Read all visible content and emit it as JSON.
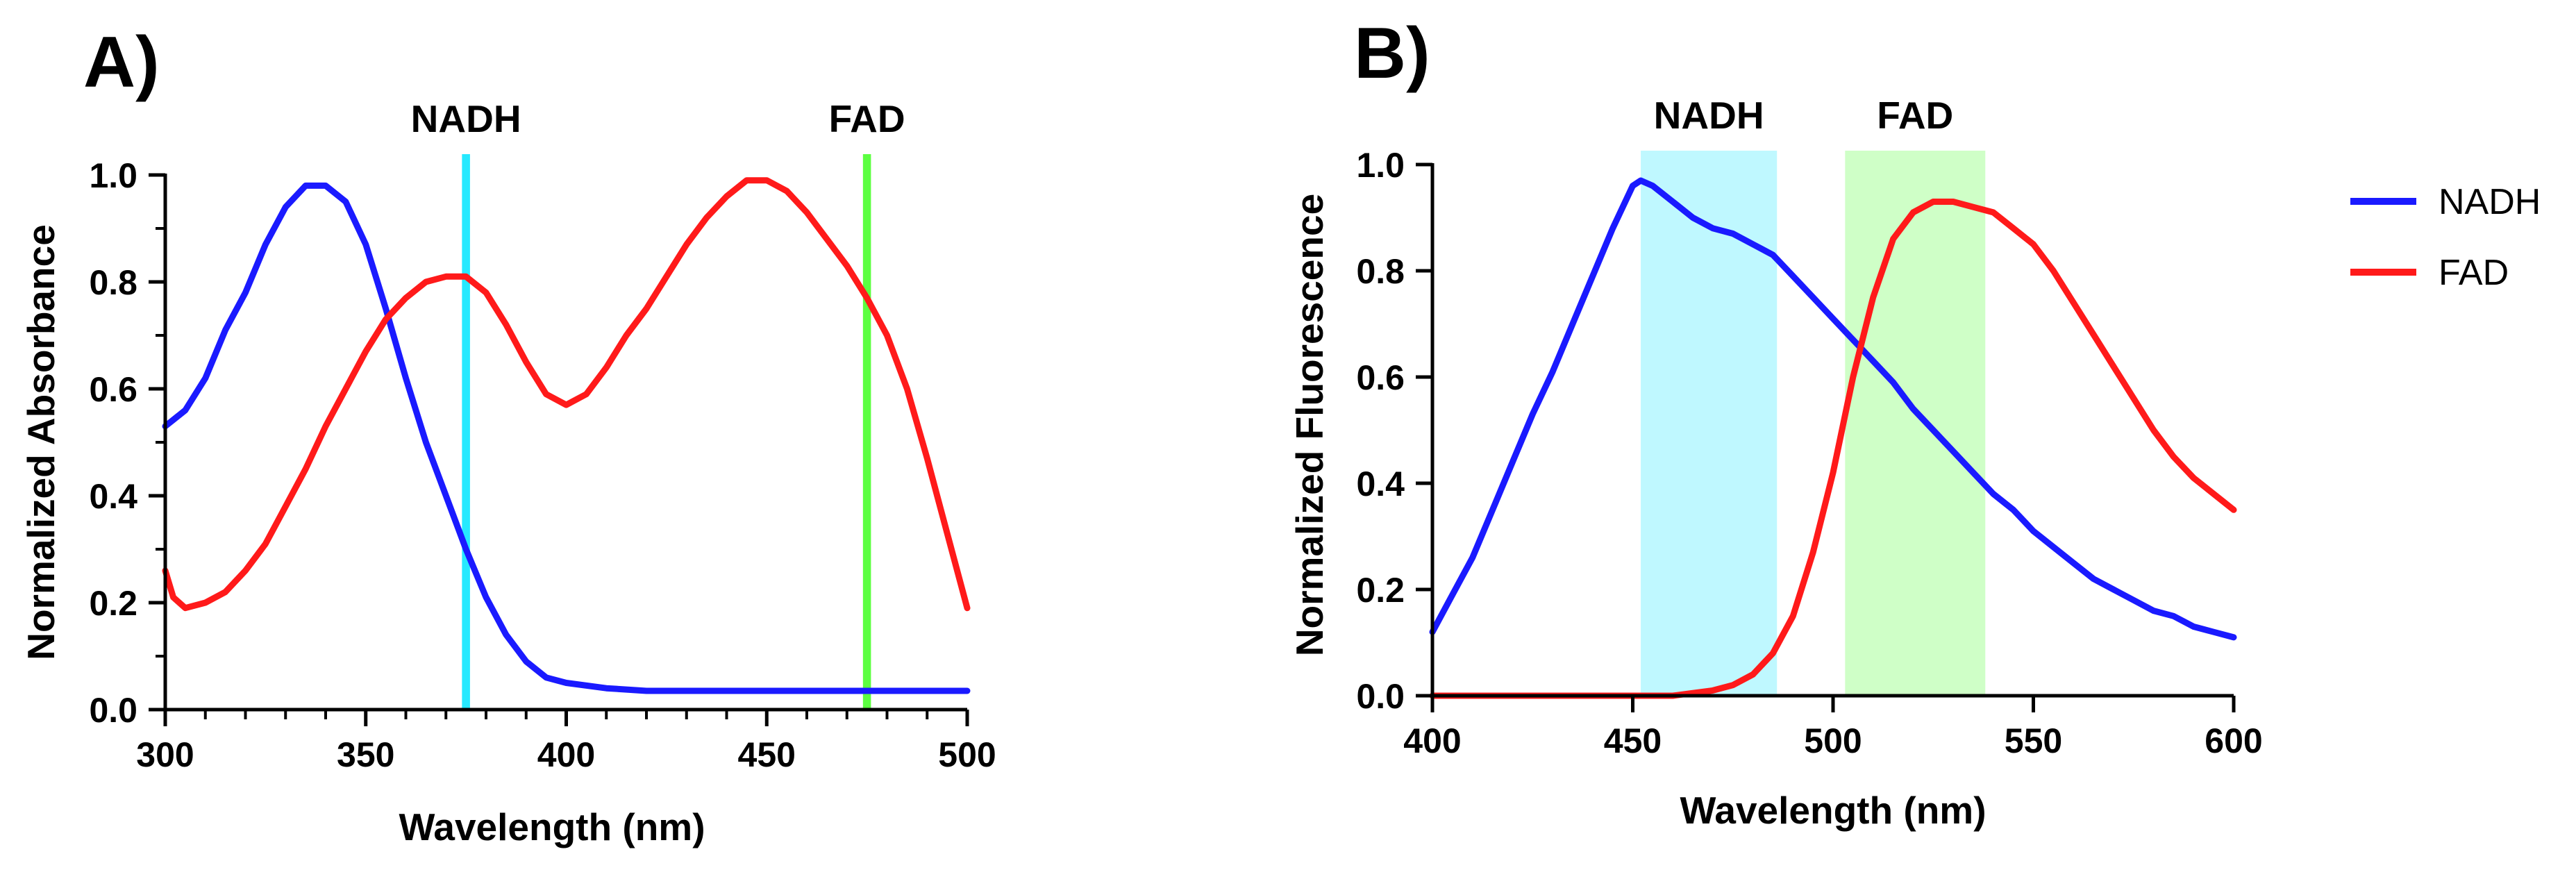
{
  "colors": {
    "nadh": "#1a1aff",
    "fad": "#ff1a1a",
    "nadh_band": "#00e5ff",
    "fad_band": "#40ff20"
  },
  "legend": [
    {
      "name": "NADH",
      "color": "#1a1aff"
    },
    {
      "name": "FAD",
      "color": "#ff1a1a"
    }
  ],
  "chart_data": [
    {
      "type": "line",
      "panel": "A)",
      "xlabel": "Wavelength (nm)",
      "ylabel": "Normalized Absorbance",
      "xlim": [
        300,
        500
      ],
      "ylim": [
        0,
        1.0
      ],
      "xticks": [
        300,
        350,
        400,
        450,
        500
      ],
      "xtick_labels": [
        "300",
        "350",
        "400",
        "450",
        "500"
      ],
      "yticks": [
        0,
        0.2,
        0.4,
        0.6,
        0.8,
        1.0
      ],
      "ytick_labels": [
        "0.0",
        "0.2",
        "0.4",
        "0.6",
        "0.8",
        "1.0"
      ],
      "bands": [
        {
          "label": "NADH",
          "from": 374,
          "to": 376,
          "color": "#00e5ff"
        },
        {
          "label": "FAD",
          "from": 474,
          "to": 476,
          "color": "#40ff20"
        }
      ],
      "series": [
        {
          "name": "NADH",
          "color": "#1a1aff",
          "x": [
            300,
            305,
            310,
            315,
            320,
            325,
            330,
            335,
            340,
            345,
            350,
            355,
            360,
            365,
            370,
            375,
            380,
            385,
            390,
            395,
            400,
            410,
            420,
            440,
            460,
            480,
            500
          ],
          "y": [
            0.53,
            0.56,
            0.62,
            0.71,
            0.78,
            0.87,
            0.94,
            0.98,
            0.98,
            0.95,
            0.87,
            0.75,
            0.62,
            0.5,
            0.4,
            0.3,
            0.21,
            0.14,
            0.09,
            0.06,
            0.05,
            0.04,
            0.035,
            0.035,
            0.035,
            0.035,
            0.035
          ]
        },
        {
          "name": "FAD",
          "color": "#ff1a1a",
          "x": [
            300,
            302,
            305,
            310,
            315,
            320,
            325,
            330,
            335,
            340,
            345,
            350,
            355,
            360,
            365,
            370,
            375,
            380,
            385,
            390,
            395,
            400,
            405,
            410,
            415,
            420,
            425,
            430,
            435,
            440,
            445,
            450,
            455,
            460,
            465,
            470,
            475,
            480,
            485,
            490,
            495,
            500
          ],
          "y": [
            0.26,
            0.21,
            0.19,
            0.2,
            0.22,
            0.26,
            0.31,
            0.38,
            0.45,
            0.53,
            0.6,
            0.67,
            0.73,
            0.77,
            0.8,
            0.81,
            0.81,
            0.78,
            0.72,
            0.65,
            0.59,
            0.57,
            0.59,
            0.64,
            0.7,
            0.75,
            0.81,
            0.87,
            0.92,
            0.96,
            0.99,
            0.99,
            0.97,
            0.93,
            0.88,
            0.83,
            0.77,
            0.7,
            0.6,
            0.47,
            0.33,
            0.19
          ]
        }
      ]
    },
    {
      "type": "line",
      "panel": "B)",
      "xlabel": "Wavelength (nm)",
      "ylabel": "Normalized Fluorescence",
      "xlim": [
        400,
        600
      ],
      "ylim": [
        0,
        1.0
      ],
      "xticks": [
        400,
        450,
        500,
        550,
        600
      ],
      "xtick_labels": [
        "400",
        "450",
        "500",
        "550",
        "600"
      ],
      "yticks": [
        0,
        0.2,
        0.4,
        0.6,
        0.8,
        1.0
      ],
      "ytick_labels": [
        "0.0",
        "0.2",
        "0.4",
        "0.6",
        "0.8",
        "1.0"
      ],
      "bands": [
        {
          "label": "NADH",
          "from": 452,
          "to": 486,
          "color": "#00e5ff"
        },
        {
          "label": "FAD",
          "from": 503,
          "to": 538,
          "color": "#40ff20"
        }
      ],
      "series": [
        {
          "name": "NADH",
          "color": "#1a1aff",
          "x": [
            400,
            405,
            410,
            415,
            420,
            425,
            430,
            435,
            440,
            445,
            450,
            452,
            455,
            460,
            465,
            470,
            475,
            480,
            485,
            490,
            495,
            500,
            505,
            510,
            515,
            520,
            525,
            530,
            535,
            540,
            545,
            550,
            555,
            560,
            565,
            570,
            575,
            580,
            585,
            590,
            595,
            600
          ],
          "y": [
            0.12,
            0.19,
            0.26,
            0.35,
            0.44,
            0.53,
            0.61,
            0.7,
            0.79,
            0.88,
            0.96,
            0.97,
            0.96,
            0.93,
            0.9,
            0.88,
            0.87,
            0.85,
            0.83,
            0.79,
            0.75,
            0.71,
            0.67,
            0.63,
            0.59,
            0.54,
            0.5,
            0.46,
            0.42,
            0.38,
            0.35,
            0.31,
            0.28,
            0.25,
            0.22,
            0.2,
            0.18,
            0.16,
            0.15,
            0.13,
            0.12,
            0.11
          ]
        },
        {
          "name": "FAD",
          "color": "#ff1a1a",
          "x": [
            400,
            440,
            460,
            465,
            470,
            475,
            480,
            485,
            490,
            495,
            500,
            505,
            510,
            515,
            520,
            525,
            530,
            535,
            540,
            545,
            550,
            555,
            560,
            565,
            570,
            575,
            580,
            585,
            590,
            595,
            600
          ],
          "y": [
            0.0,
            0.0,
            0.0,
            0.005,
            0.01,
            0.02,
            0.04,
            0.08,
            0.15,
            0.27,
            0.42,
            0.6,
            0.75,
            0.86,
            0.91,
            0.93,
            0.93,
            0.92,
            0.91,
            0.88,
            0.85,
            0.8,
            0.74,
            0.68,
            0.62,
            0.56,
            0.5,
            0.45,
            0.41,
            0.38,
            0.35
          ]
        }
      ]
    }
  ]
}
